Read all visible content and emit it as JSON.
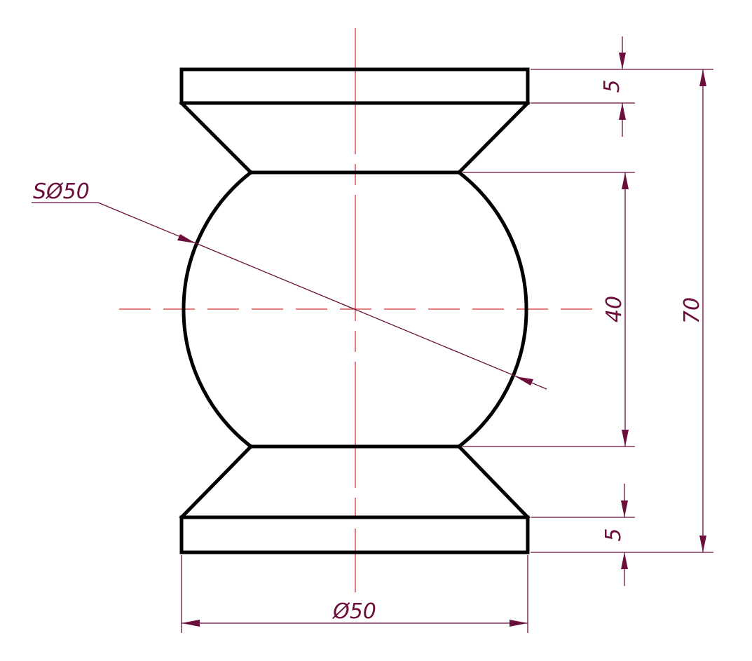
{
  "drawing": {
    "colors": {
      "outline": "#000000",
      "centerline": "#d32f2f",
      "dimension": "#6b0f3c",
      "background": "#ffffff"
    },
    "dimensions": {
      "sphere_diameter": "SØ50",
      "base_diameter": "Ø50",
      "top_flange_thickness": "5",
      "bottom_flange_thickness": "5",
      "sphere_zone_height": "40",
      "overall_height": "70"
    }
  }
}
